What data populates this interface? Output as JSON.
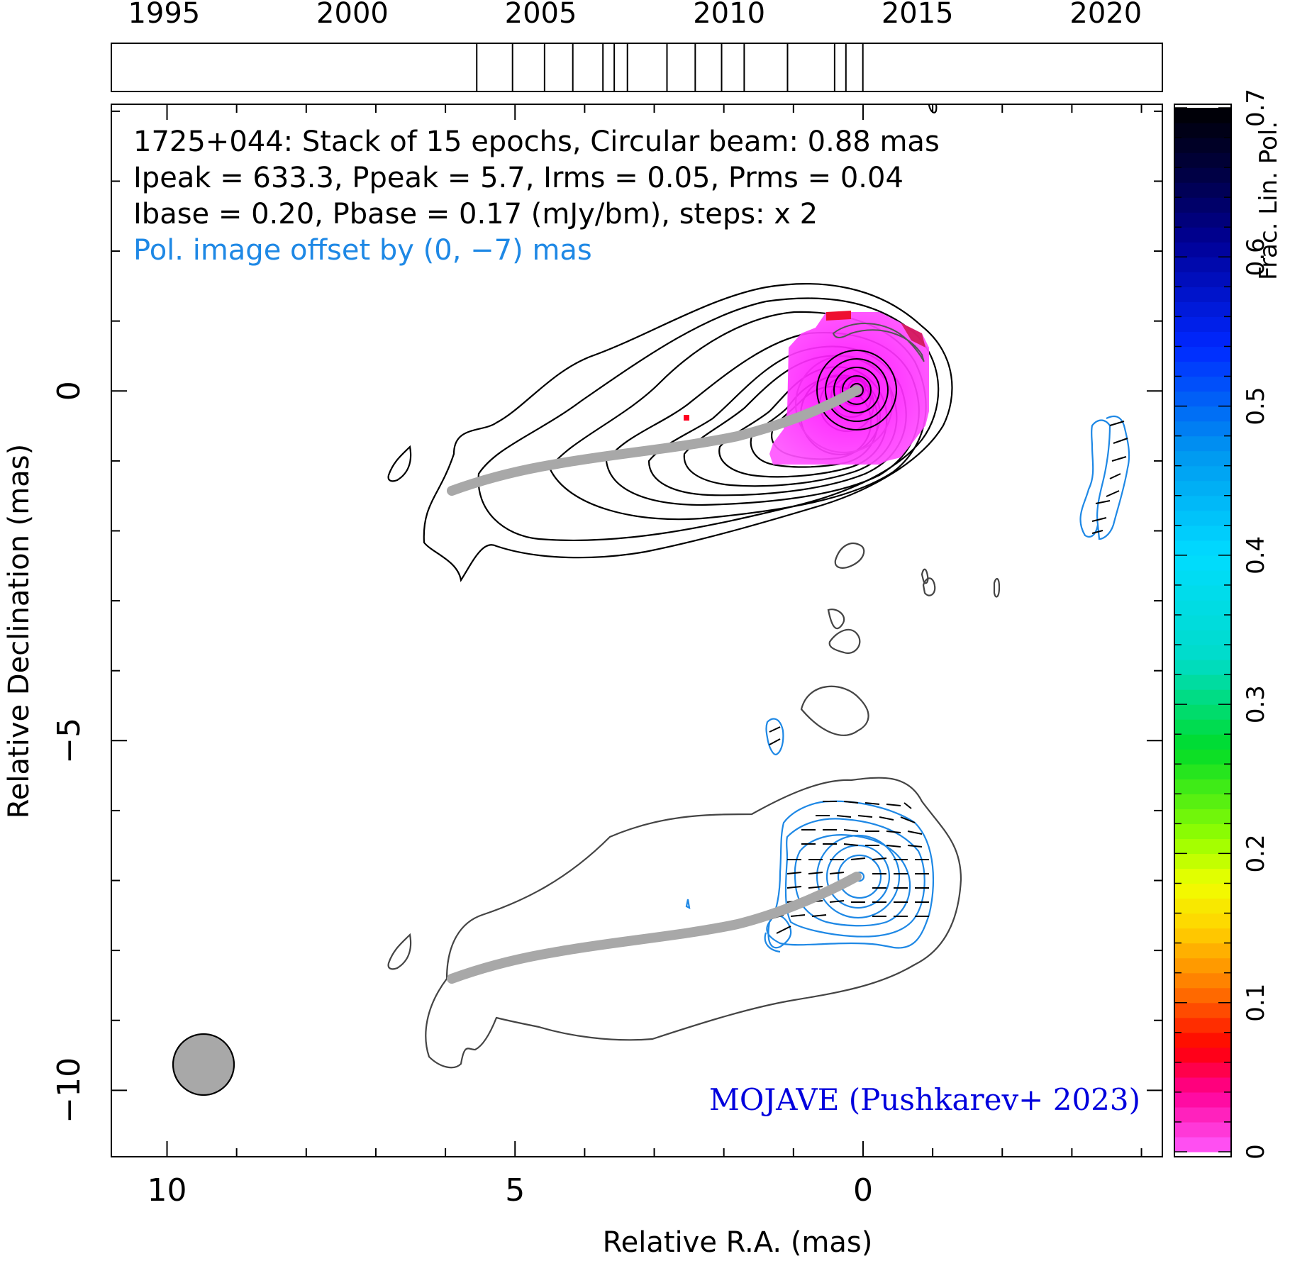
{
  "chart_data": {
    "type": "contour",
    "title_lines": [
      "1725+044: Stack of 15 epochs, Circular beam: 0.88 mas",
      "Ipeak = 633.3, Ppeak = 5.7, Irms = 0.05, Prms = 0.04",
      "Ibase = 0.20, Pbase = 0.17 (mJy/bm), steps: x 2"
    ],
    "offset_note": "Pol. image offset by (0, −7) mas",
    "credit": "MOJAVE (Pushkarev+ 2023)",
    "xlabel": "Relative R.A. (mas)",
    "ylabel": "Relative Declination (mas)",
    "xlim": [
      10.8,
      -4.3
    ],
    "ylim": [
      -10.95,
      4.1
    ],
    "x_ticks": [
      10,
      5,
      0
    ],
    "x_tick_labels": [
      "10",
      "5",
      "0"
    ],
    "y_ticks": [
      0,
      -5,
      -10
    ],
    "y_tick_labels": [
      "0",
      "−5",
      "−10"
    ],
    "epoch_axis": {
      "range": [
        1993.6,
        2021.5
      ],
      "ticks": [
        1995,
        2000,
        2005,
        2010,
        2015,
        2020
      ],
      "tick_labels": [
        "1995",
        "2000",
        "2005",
        "2010",
        "2015",
        "2020"
      ],
      "epochs": [
        2003.3,
        2004.25,
        2005.1,
        2005.85,
        2006.65,
        2006.95,
        2007.3,
        2008.35,
        2009.1,
        2009.8,
        2010.4,
        2011.55,
        2012.8,
        2013.1,
        2013.55
      ]
    },
    "colorbar": {
      "label": "Frac. Lin. Pol.",
      "range": [
        0,
        0.7
      ],
      "ticks": [
        0,
        0.1,
        0.2,
        0.3,
        0.4,
        0.5,
        0.6,
        0.7
      ],
      "tick_labels": [
        "0",
        "0.1",
        "0.2",
        "0.3",
        "0.4",
        "0.5",
        "0.6",
        "0.7"
      ]
    },
    "beam_mas": 0.88,
    "ridgeline": [
      [
        0,
        0
      ],
      [
        0.7,
        -0.35
      ],
      [
        1.6,
        -0.7
      ],
      [
        3.0,
        -0.95
      ],
      [
        4.5,
        -1.1
      ],
      [
        5.95,
        -1.45
      ]
    ],
    "colors": {
      "total_intensity": "#000000",
      "polarization_contours": "#1e88e5",
      "ridgeline": "#a8a8a8",
      "fractional_pol_core": "#ff33ff",
      "credit": "#0000dd",
      "offset_note": "#1e88e5"
    }
  }
}
